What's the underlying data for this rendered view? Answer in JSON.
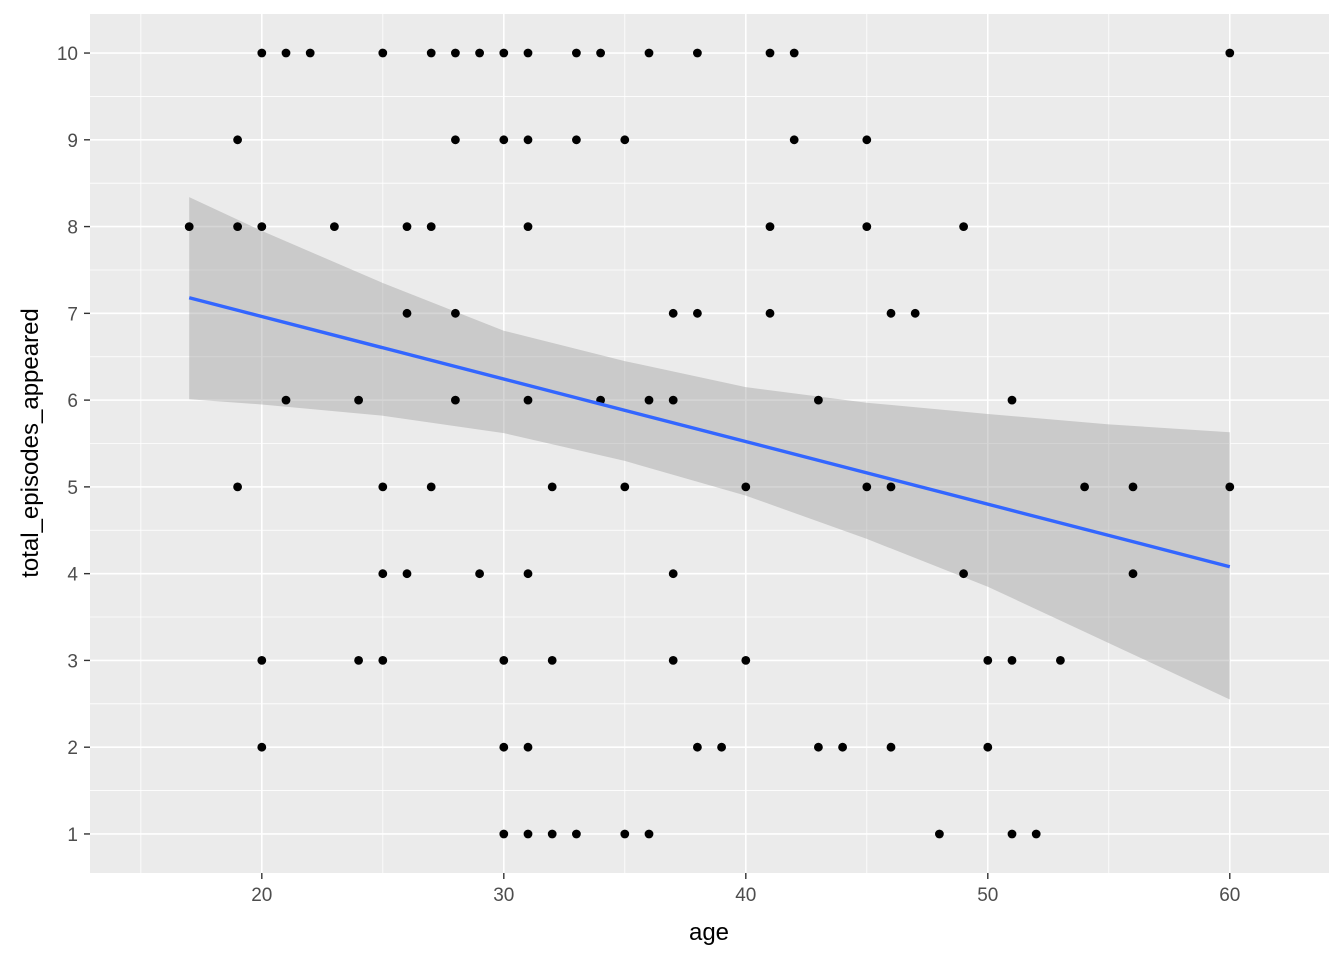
{
  "chart_data": {
    "type": "scatter",
    "title": "",
    "xlabel": "age",
    "ylabel": "total_episodes_appeared",
    "xlim": [
      12.9,
      64.1
    ],
    "ylim": [
      0.55,
      10.45
    ],
    "x_ticks": [
      20,
      30,
      40,
      50,
      60
    ],
    "y_ticks": [
      1,
      2,
      3,
      4,
      5,
      6,
      7,
      8,
      9,
      10
    ],
    "grid": true,
    "legend": "none",
    "points": [
      [
        20,
        10
      ],
      [
        21,
        10
      ],
      [
        22,
        10
      ],
      [
        25,
        10
      ],
      [
        27,
        10
      ],
      [
        28,
        10
      ],
      [
        29,
        10
      ],
      [
        30,
        10
      ],
      [
        31,
        10
      ],
      [
        33,
        10
      ],
      [
        34,
        10
      ],
      [
        36,
        10
      ],
      [
        38,
        10
      ],
      [
        41,
        10
      ],
      [
        42,
        10
      ],
      [
        60,
        10
      ],
      [
        19,
        9
      ],
      [
        28,
        9
      ],
      [
        30,
        9
      ],
      [
        31,
        9
      ],
      [
        33,
        9
      ],
      [
        35,
        9
      ],
      [
        42,
        9
      ],
      [
        45,
        9
      ],
      [
        17,
        8
      ],
      [
        19,
        8
      ],
      [
        20,
        8
      ],
      [
        23,
        8
      ],
      [
        26,
        8
      ],
      [
        27,
        8
      ],
      [
        31,
        8
      ],
      [
        41,
        8
      ],
      [
        45,
        8
      ],
      [
        49,
        8
      ],
      [
        26,
        7
      ],
      [
        28,
        7
      ],
      [
        37,
        7
      ],
      [
        38,
        7
      ],
      [
        41,
        7
      ],
      [
        46,
        7
      ],
      [
        47,
        7
      ],
      [
        21,
        6
      ],
      [
        24,
        6
      ],
      [
        28,
        6
      ],
      [
        31,
        6
      ],
      [
        34,
        6
      ],
      [
        36,
        6
      ],
      [
        37,
        6
      ],
      [
        43,
        6
      ],
      [
        51,
        6
      ],
      [
        19,
        5
      ],
      [
        25,
        5
      ],
      [
        27,
        5
      ],
      [
        32,
        5
      ],
      [
        35,
        5
      ],
      [
        40,
        5
      ],
      [
        45,
        5
      ],
      [
        46,
        5
      ],
      [
        54,
        5
      ],
      [
        56,
        5
      ],
      [
        60,
        5
      ],
      [
        25,
        4
      ],
      [
        26,
        4
      ],
      [
        29,
        4
      ],
      [
        31,
        4
      ],
      [
        37,
        4
      ],
      [
        49,
        4
      ],
      [
        56,
        4
      ],
      [
        20,
        3
      ],
      [
        24,
        3
      ],
      [
        25,
        3
      ],
      [
        30,
        3
      ],
      [
        32,
        3
      ],
      [
        37,
        3
      ],
      [
        40,
        3
      ],
      [
        50,
        3
      ],
      [
        51,
        3
      ],
      [
        53,
        3
      ],
      [
        20,
        2
      ],
      [
        30,
        2
      ],
      [
        31,
        2
      ],
      [
        38,
        2
      ],
      [
        39,
        2
      ],
      [
        43,
        2
      ],
      [
        44,
        2
      ],
      [
        46,
        2
      ],
      [
        50,
        2
      ],
      [
        30,
        1
      ],
      [
        31,
        1
      ],
      [
        32,
        1
      ],
      [
        33,
        1
      ],
      [
        35,
        1
      ],
      [
        36,
        1
      ],
      [
        48,
        1
      ],
      [
        51,
        1
      ],
      [
        52,
        1
      ]
    ],
    "smooth": {
      "method": "lm",
      "x": [
        17,
        60
      ],
      "fit": [
        7.18,
        4.08
      ],
      "band_x": [
        17,
        20,
        25,
        30,
        35,
        40,
        45,
        50,
        55,
        60
      ],
      "band_lower": [
        6.01,
        5.95,
        5.82,
        5.62,
        5.3,
        4.9,
        4.4,
        3.85,
        3.2,
        2.55
      ],
      "band_upper": [
        8.34,
        7.95,
        7.35,
        6.8,
        6.45,
        6.15,
        5.97,
        5.84,
        5.72,
        5.63
      ]
    },
    "colors": {
      "panel": "#EBEBEB",
      "grid_major": "#FFFFFF",
      "point": "#000000",
      "line": "#3366FF",
      "band": "#999999"
    }
  }
}
